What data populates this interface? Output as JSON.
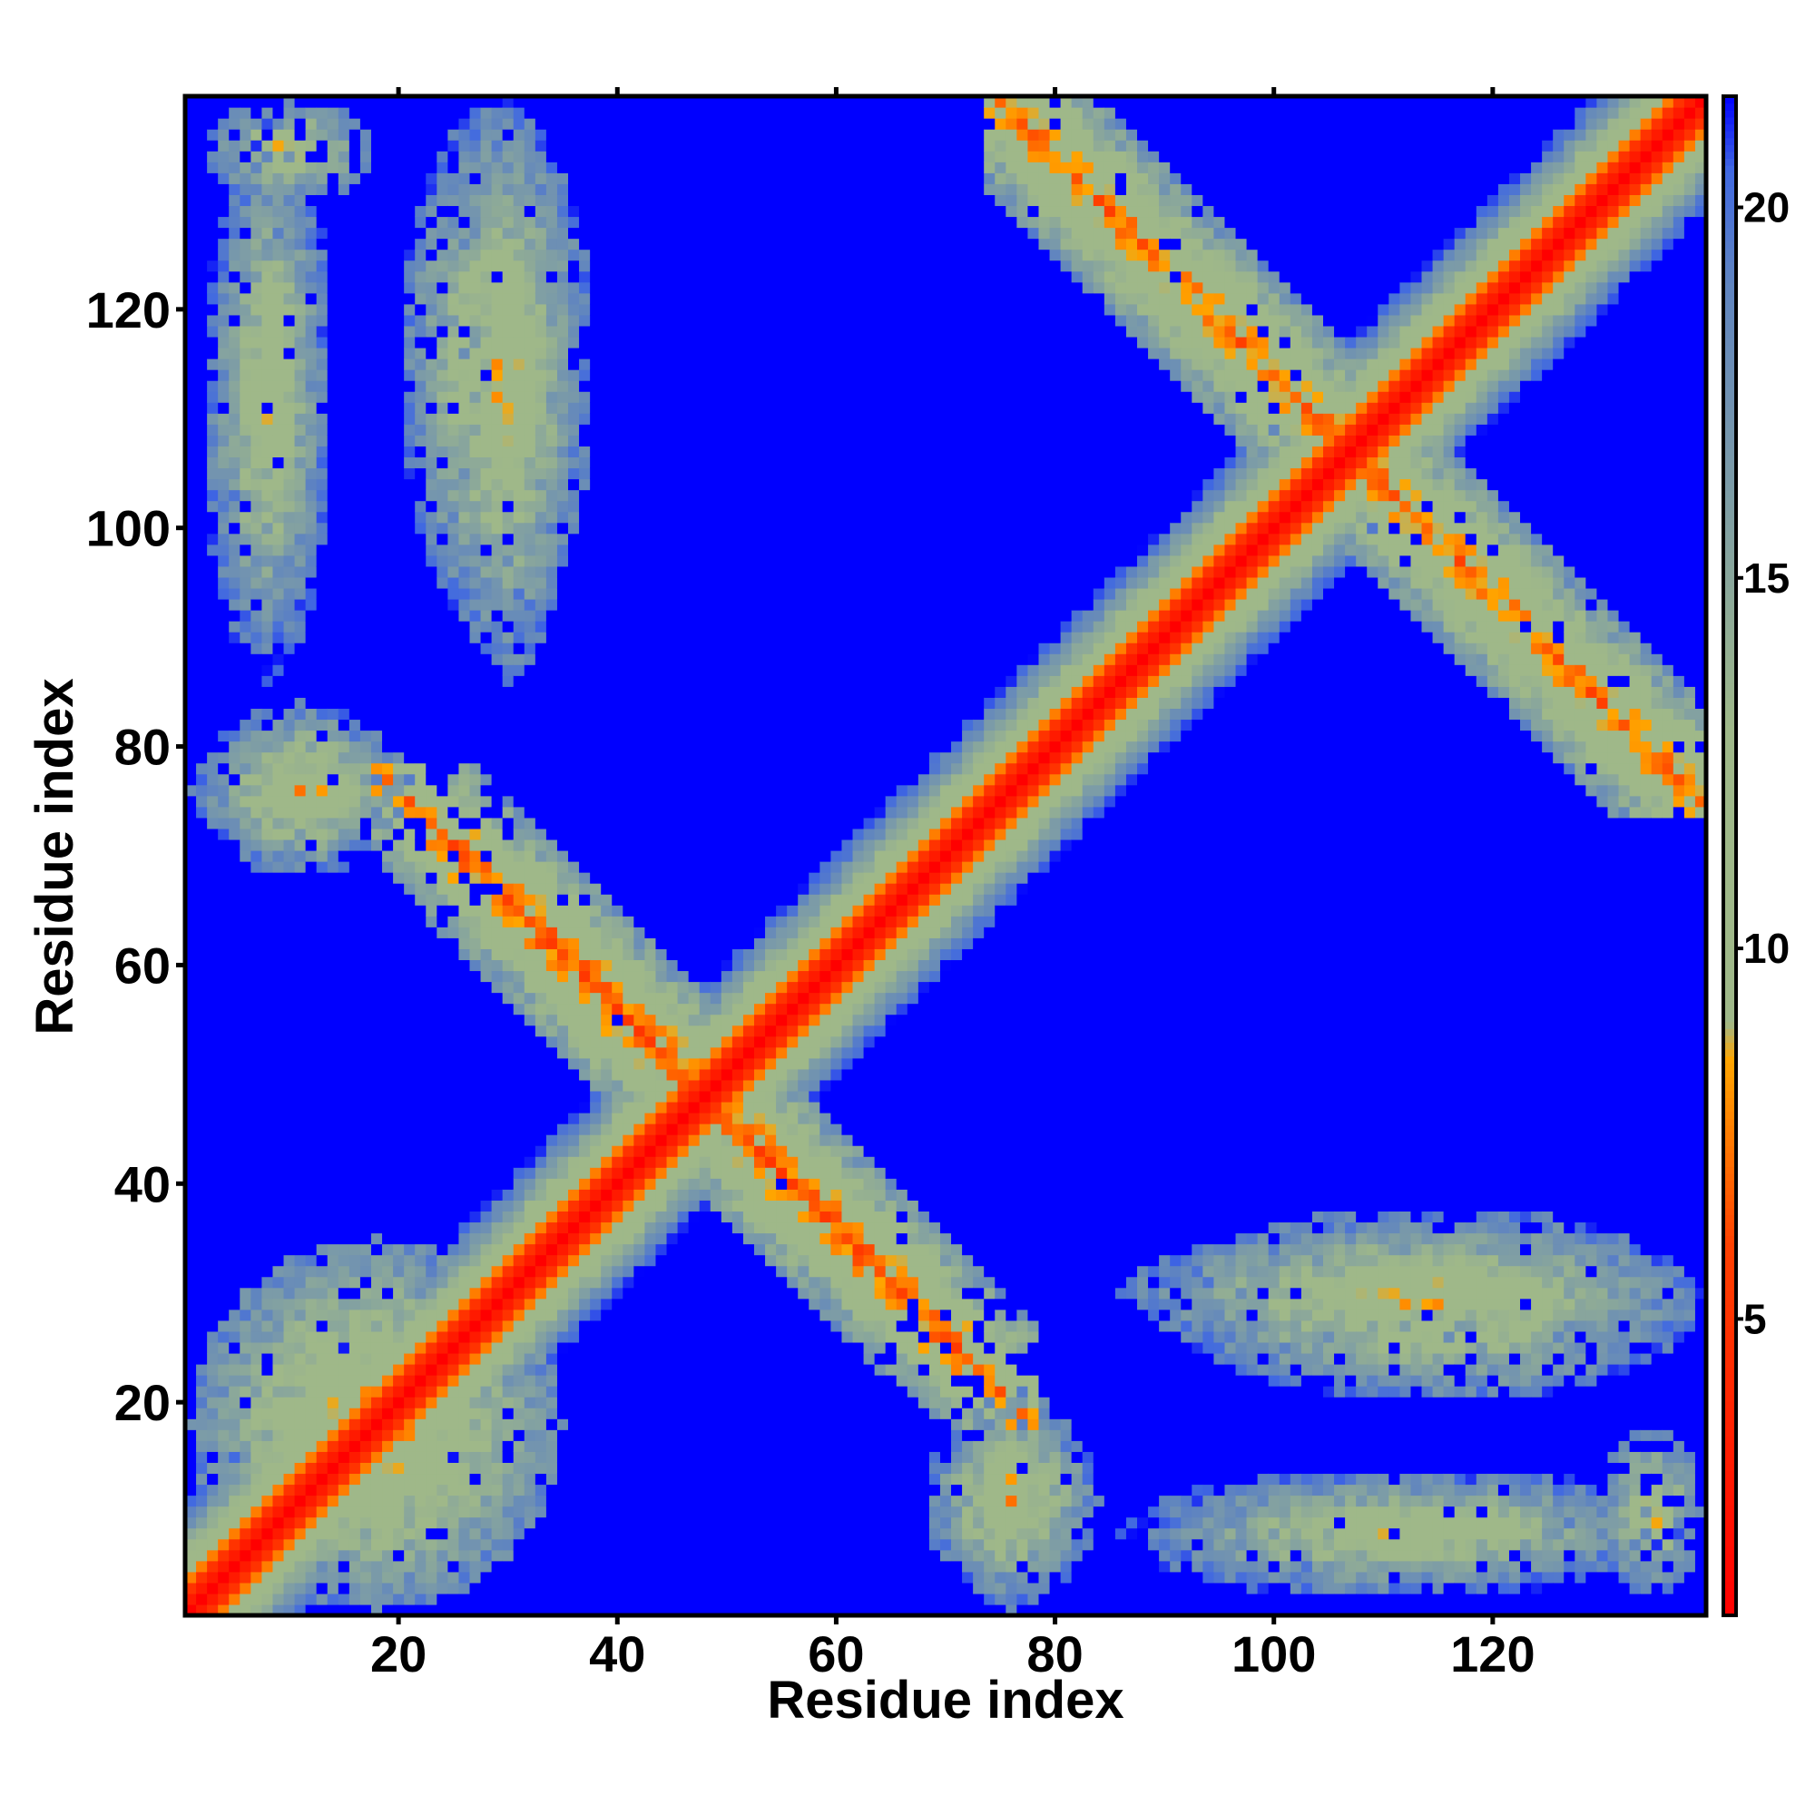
{
  "chart_data": {
    "type": "heatmap",
    "title": "",
    "xlabel": "Residue index",
    "ylabel": "Residue index",
    "n_residues": 139,
    "xlim": [
      1,
      139
    ],
    "ylim": [
      1,
      139
    ],
    "x_ticks": [
      20,
      40,
      60,
      80,
      100,
      120
    ],
    "y_ticks": [
      20,
      40,
      60,
      80,
      100,
      120
    ],
    "grid": false,
    "colorbar": {
      "range": [
        1,
        21.5
      ],
      "ticks": [
        5,
        10,
        15,
        20
      ],
      "colormap": [
        {
          "value": 1,
          "color": "#ff0000"
        },
        {
          "value": 6,
          "color": "#ff4000"
        },
        {
          "value": 8.5,
          "color": "#ffa500"
        },
        {
          "value": 9,
          "color": "#9fb889"
        },
        {
          "value": 13,
          "color": "#9fb889"
        },
        {
          "value": 19,
          "color": "#5f84c0"
        },
        {
          "value": 20.5,
          "color": "#4169e1"
        },
        {
          "value": 21.5,
          "color": "#0000ff"
        }
      ]
    },
    "background_value": 21.5,
    "contact_regions": [
      {
        "desc": "diagonal",
        "type": "band",
        "start": [
          1,
          1
        ],
        "end": [
          139,
          139
        ]
      },
      {
        "desc": "antiparallel hairpin",
        "center_sum": 96,
        "x_range": [
          30,
          78
        ],
        "y_range": [
          18,
          72
        ],
        "min_distance": 4.5
      },
      {
        "desc": "N-term cluster",
        "x_range": [
          1,
          35
        ],
        "y_range": [
          1,
          35
        ],
        "min_distance": 5
      },
      {
        "desc": "cluster",
        "x_range": [
          1,
          22
        ],
        "y_range": [
          70,
          82
        ],
        "min_distance": 6
      },
      {
        "desc": "strip",
        "x_range": [
          3,
          14
        ],
        "y_range": [
          88,
          139
        ],
        "min_distance": 7
      },
      {
        "desc": "strip",
        "x_range": [
          20,
          38
        ],
        "y_range": [
          90,
          139
        ],
        "min_distance": 6
      },
      {
        "desc": "cluster",
        "x_range": [
          68,
          84
        ],
        "y_range": [
          2,
          20
        ],
        "min_distance": 6
      },
      {
        "desc": "strip",
        "x_range": [
          86,
          135
        ],
        "y_range": [
          2,
          14
        ],
        "min_distance": 7
      },
      {
        "desc": "strip",
        "x_range": [
          86,
          139
        ],
        "y_range": [
          24,
          36
        ],
        "min_distance": 6
      },
      {
        "desc": "cluster",
        "x_range": [
          130,
          139
        ],
        "y_range": [
          2,
          18
        ],
        "min_distance": 6
      },
      {
        "desc": "antiparallel strand pair",
        "center_sum": 214,
        "x_range": [
          76,
          139
        ],
        "y_range": [
          74,
          139
        ],
        "min_distance": 5
      }
    ]
  }
}
